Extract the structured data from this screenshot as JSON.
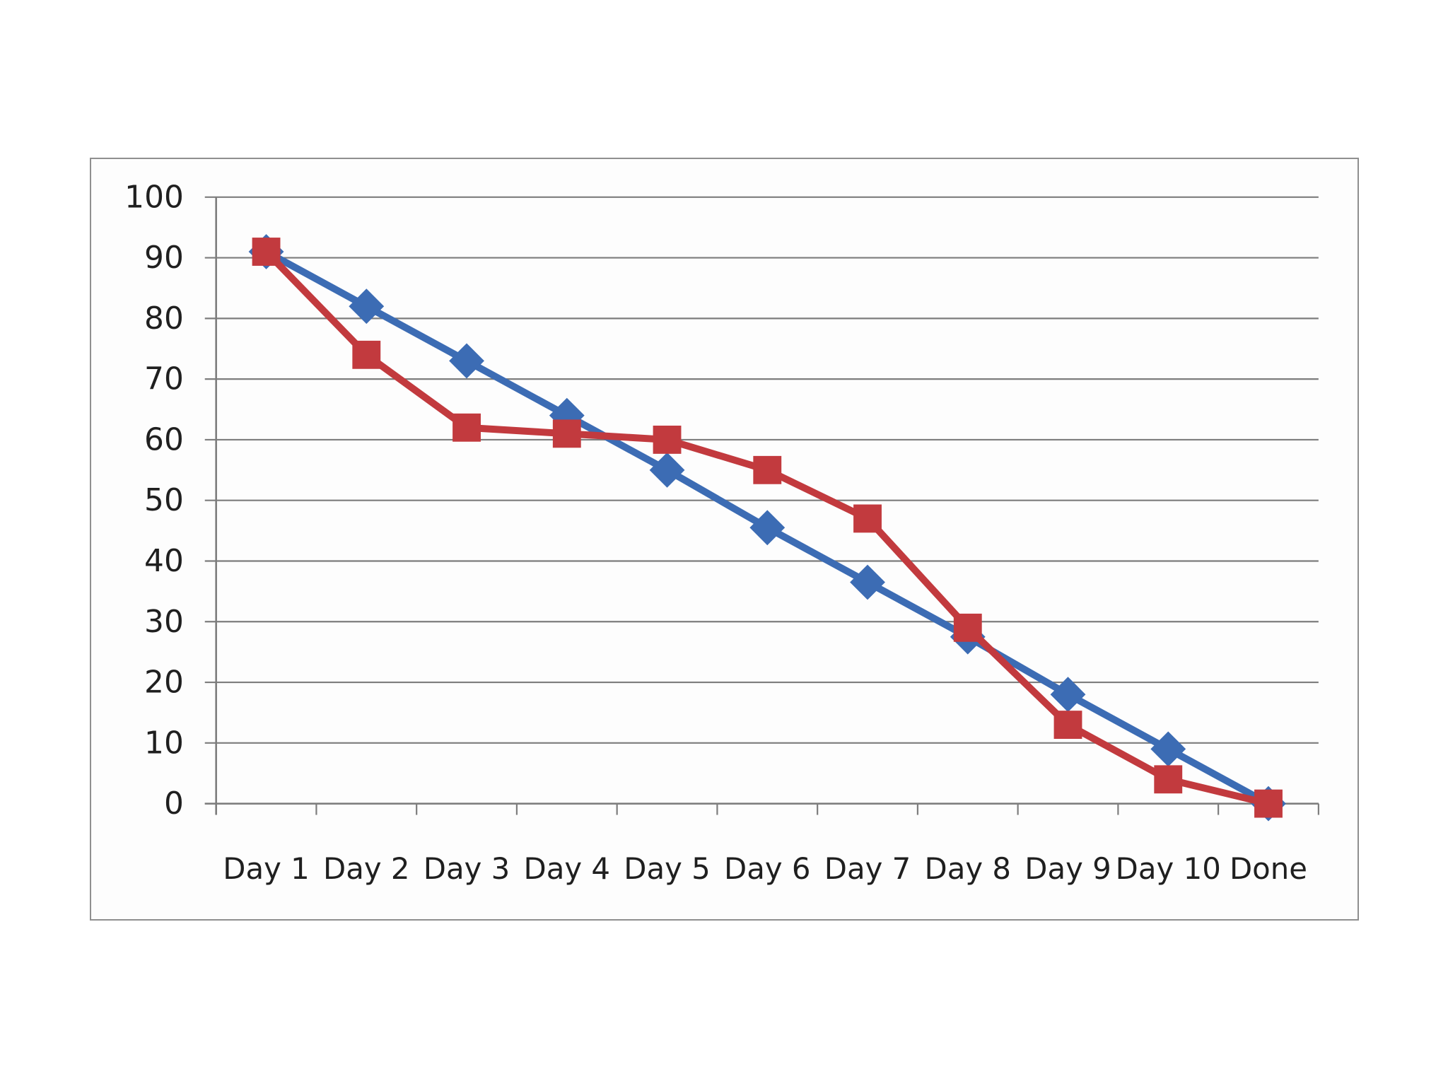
{
  "chart_data": {
    "type": "line",
    "categories": [
      "Day 1",
      "Day 2",
      "Day 3",
      "Day 4",
      "Day 5",
      "Day 6",
      "Day 7",
      "Day 8",
      "Day 9",
      "Day 10",
      "Done"
    ],
    "series": [
      {
        "name": "blue-diamond-series",
        "marker": "diamond",
        "color": "#3c6cb4",
        "values": [
          91,
          82,
          73,
          64,
          55,
          45.5,
          36.5,
          27.5,
          18,
          9,
          0
        ]
      },
      {
        "name": "red-square-series",
        "marker": "square",
        "color": "#c23a3e",
        "values": [
          91,
          74,
          62,
          61,
          60,
          55,
          47,
          29,
          13,
          4,
          0
        ]
      }
    ],
    "title": "",
    "xlabel": "",
    "ylabel": "",
    "ylim": [
      0,
      100
    ],
    "ytick_step": 10,
    "ytick_labels": [
      "100",
      "90",
      "80",
      "70",
      "60",
      "50",
      "40",
      "30",
      "20",
      "10",
      "0"
    ],
    "grid": "horizontal",
    "legend_position": "none",
    "axis_color": "#7d7d7d",
    "text_color": "#1f1f1f"
  }
}
